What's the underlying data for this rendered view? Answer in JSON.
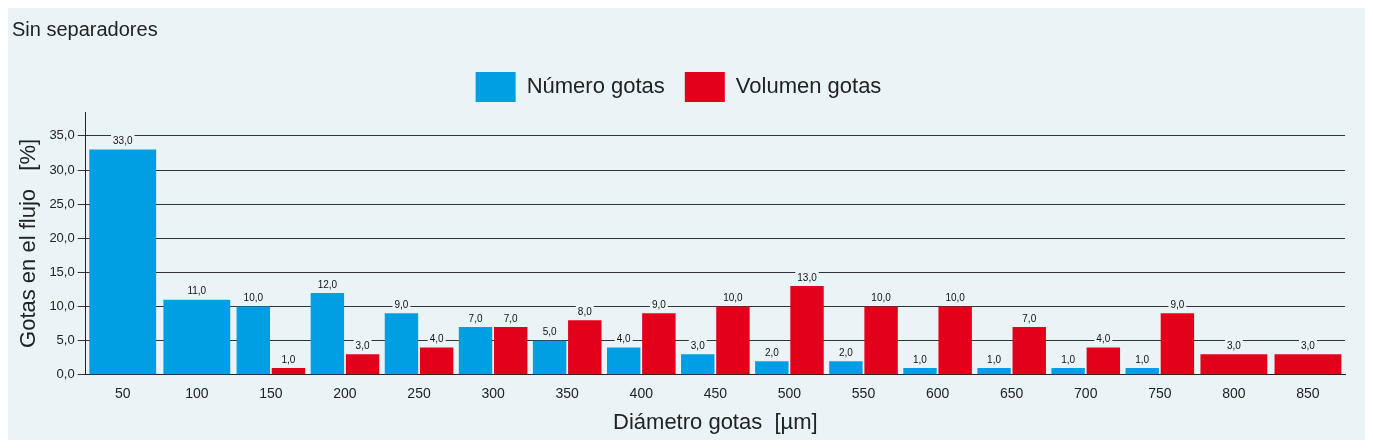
{
  "chart_data": {
    "type": "bar",
    "title": "Sin separadores",
    "xlabel": "Diámetro gotas  [µm]",
    "ylabel": "Gotas en el flujo   [%]",
    "categories": [
      "50",
      "100",
      "150",
      "200",
      "250",
      "300",
      "350",
      "400",
      "450",
      "500",
      "550",
      "600",
      "650",
      "700",
      "750",
      "800",
      "850"
    ],
    "series": [
      {
        "name": "Número gotas",
        "color": "#009fe3",
        "values": [
          33,
          11,
          10,
          12,
          9,
          7,
          5,
          4,
          3,
          2,
          2,
          1,
          1,
          1,
          1,
          null,
          null
        ],
        "value_labels": [
          "33,0",
          "11,0",
          "10,0",
          "12,0",
          "9,0",
          "7,0",
          "5,0",
          "4,0",
          "3,0",
          "2,0",
          "2,0",
          "1,0",
          "1,0",
          "1,0",
          "1,0",
          null,
          null
        ]
      },
      {
        "name": "Volumen gotas",
        "color": "#e2001a",
        "values": [
          null,
          null,
          1,
          3,
          4,
          7,
          8,
          9,
          10,
          13,
          10,
          10,
          7,
          4,
          9,
          3,
          3
        ],
        "value_labels": [
          null,
          null,
          "1,0",
          "3,0",
          "4,0",
          "7,0",
          "8,0",
          "9,0",
          "10,0",
          "13,0",
          "10,0",
          "10,0",
          "7,0",
          "4,0",
          "9,0",
          "3,0",
          "3,0"
        ]
      }
    ],
    "ylim": [
      0,
      38.5
    ],
    "yticks": [
      {
        "value": 0,
        "label": "0,0"
      },
      {
        "value": 5,
        "label": "5,0"
      },
      {
        "value": 10,
        "label": "10,0"
      },
      {
        "value": 15,
        "label": "15,0"
      },
      {
        "value": 20,
        "label": "20,0"
      },
      {
        "value": 25,
        "label": "25,0"
      },
      {
        "value": 30,
        "label": "30,0"
      },
      {
        "value": 35,
        "label": "35,0"
      }
    ],
    "grid": "y",
    "legend": "top"
  }
}
